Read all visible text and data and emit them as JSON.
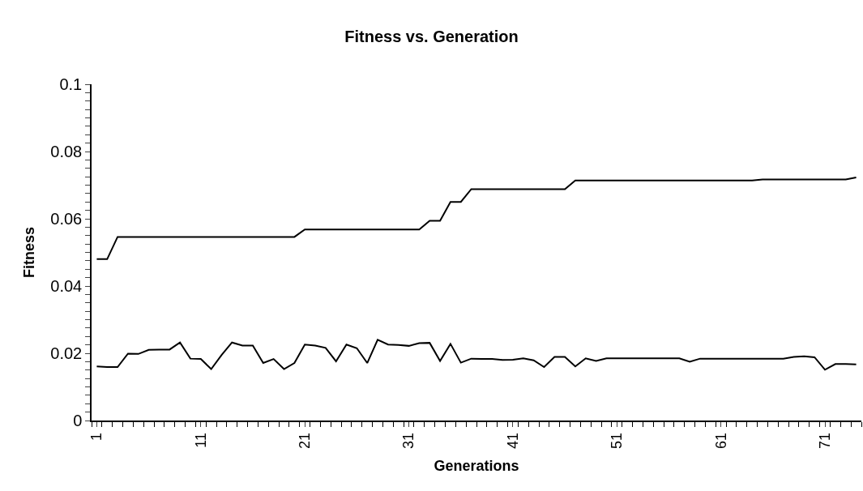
{
  "chart_data": {
    "type": "line",
    "title": "Fitness vs. Generation",
    "xlabel": "Generations",
    "ylabel": "Fitness",
    "categories": [
      "1",
      null,
      null,
      null,
      null,
      null,
      null,
      null,
      null,
      null,
      "11",
      null,
      null,
      null,
      null,
      null,
      null,
      null,
      null,
      null,
      "21",
      null,
      null,
      null,
      null,
      null,
      null,
      null,
      null,
      null,
      "31",
      null,
      null,
      null,
      null,
      null,
      null,
      null,
      null,
      null,
      "41",
      null,
      null,
      null,
      null,
      null,
      null,
      null,
      null,
      null,
      "51",
      null,
      null,
      null,
      null,
      null,
      null,
      null,
      null,
      null,
      "61",
      null,
      null,
      null,
      null,
      null,
      null,
      null,
      null,
      null,
      "71",
      null,
      null,
      null
    ],
    "series": [
      {
        "color": "#000000",
        "values": [
          0.048,
          0.048,
          0.0546,
          0.0546,
          0.0546,
          0.0546,
          0.0546,
          0.0546,
          0.0546,
          0.0546,
          0.0546,
          0.0546,
          0.0546,
          0.0546,
          0.0546,
          0.0546,
          0.0546,
          0.0546,
          0.0546,
          0.0546,
          0.0568,
          0.0568,
          0.0568,
          0.0568,
          0.0568,
          0.0568,
          0.0568,
          0.0568,
          0.0568,
          0.0568,
          0.0568,
          0.0568,
          0.0594,
          0.0594,
          0.065,
          0.065,
          0.0688,
          0.0688,
          0.0688,
          0.0688,
          0.0688,
          0.0688,
          0.0688,
          0.0688,
          0.0688,
          0.0688,
          0.0714,
          0.0714,
          0.0714,
          0.0714,
          0.0714,
          0.0714,
          0.0714,
          0.0714,
          0.0714,
          0.0714,
          0.0714,
          0.0714,
          0.0714,
          0.0714,
          0.0714,
          0.0714,
          0.0714,
          0.0714,
          0.0717,
          0.0717,
          0.0717,
          0.0717,
          0.0717,
          0.0717,
          0.0717,
          0.0717,
          0.0717,
          0.0723
        ]
      },
      {
        "color": "#000000",
        "values": [
          0.0161,
          0.0159,
          0.0159,
          0.0199,
          0.0198,
          0.021,
          0.0211,
          0.0211,
          0.0232,
          0.0184,
          0.0183,
          0.0153,
          0.0195,
          0.0232,
          0.0223,
          0.0223,
          0.0171,
          0.0183,
          0.0153,
          0.0171,
          0.0226,
          0.0223,
          0.0216,
          0.0176,
          0.0226,
          0.0215,
          0.0171,
          0.024,
          0.0226,
          0.0225,
          0.0222,
          0.023,
          0.0231,
          0.0177,
          0.0228,
          0.0172,
          0.0184,
          0.0183,
          0.0183,
          0.018,
          0.0181,
          0.0185,
          0.0179,
          0.0159,
          0.0189,
          0.0189,
          0.0161,
          0.0185,
          0.0177,
          0.0185,
          0.0185,
          0.0185,
          0.0185,
          0.0185,
          0.0185,
          0.0185,
          0.0185,
          0.0175,
          0.0184,
          0.0184,
          0.0184,
          0.0184,
          0.0184,
          0.0184,
          0.0184,
          0.0184,
          0.0184,
          0.0189,
          0.0191,
          0.0188,
          0.0151,
          0.0168,
          0.0168,
          0.0167
        ]
      }
    ],
    "ylim": [
      0,
      0.1
    ],
    "yticks": [
      0,
      {
        "value": 0.0025,
        "label": null
      },
      {
        "value": 0.005,
        "label": null
      },
      {
        "value": 0.0075,
        "label": null
      },
      {
        "value": 0.01,
        "label": null
      },
      {
        "value": 0.0125,
        "label": null
      },
      {
        "value": 0.015,
        "label": null
      },
      {
        "value": 0.0175,
        "label": null
      },
      0.02,
      {
        "value": 0.0225,
        "label": null
      },
      {
        "value": 0.025,
        "label": null
      },
      {
        "value": 0.0275,
        "label": null
      },
      {
        "value": 0.03,
        "label": null
      },
      {
        "value": 0.0325,
        "label": null
      },
      {
        "value": 0.035,
        "label": null
      },
      {
        "value": 0.0375,
        "label": null
      },
      0.04,
      {
        "value": 0.0425,
        "label": null
      },
      {
        "value": 0.045,
        "label": null
      },
      {
        "value": 0.0475,
        "label": null
      },
      {
        "value": 0.05,
        "label": null
      },
      {
        "value": 0.0525,
        "label": null
      },
      {
        "value": 0.055,
        "label": null
      },
      {
        "value": 0.0575,
        "label": null
      },
      0.06,
      {
        "value": 0.0625,
        "label": null
      },
      {
        "value": 0.065,
        "label": null
      },
      {
        "value": 0.0675,
        "label": null
      },
      {
        "value": 0.07,
        "label": null
      },
      {
        "value": 0.0725,
        "label": null
      },
      {
        "value": 0.075,
        "label": null
      },
      {
        "value": 0.0775,
        "label": null
      },
      0.08,
      {
        "value": 0.0825,
        "label": null
      },
      {
        "value": 0.085,
        "label": null
      },
      {
        "value": 0.0875,
        "label": null
      },
      {
        "value": 0.09,
        "label": null
      },
      {
        "value": 0.0925,
        "label": null
      },
      {
        "value": 0.095,
        "label": null
      },
      {
        "value": 0.0975,
        "label": null
      },
      0.1
    ],
    "marker": "none",
    "line_style": "solid"
  }
}
